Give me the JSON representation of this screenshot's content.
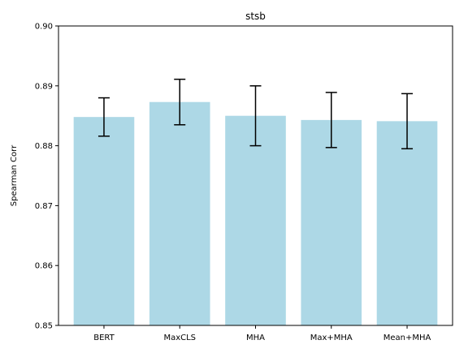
{
  "chart_data": {
    "type": "bar",
    "title": "stsb",
    "xlabel": "",
    "ylabel": "Spearman Corr",
    "categories": [
      "BERT",
      "MaxCLS",
      "MHA",
      "Max+MHA",
      "Mean+MHA"
    ],
    "values": [
      0.8848,
      0.8873,
      0.885,
      0.8843,
      0.8841
    ],
    "errors": [
      0.0032,
      0.0038,
      0.005,
      0.0046,
      0.0046
    ],
    "ylim": [
      0.85,
      0.9
    ],
    "yticks": [
      "0.85",
      "0.86",
      "0.87",
      "0.88",
      "0.89",
      "0.90"
    ],
    "grid": false,
    "bar_color": "#add8e6",
    "error_color": "#000000"
  }
}
